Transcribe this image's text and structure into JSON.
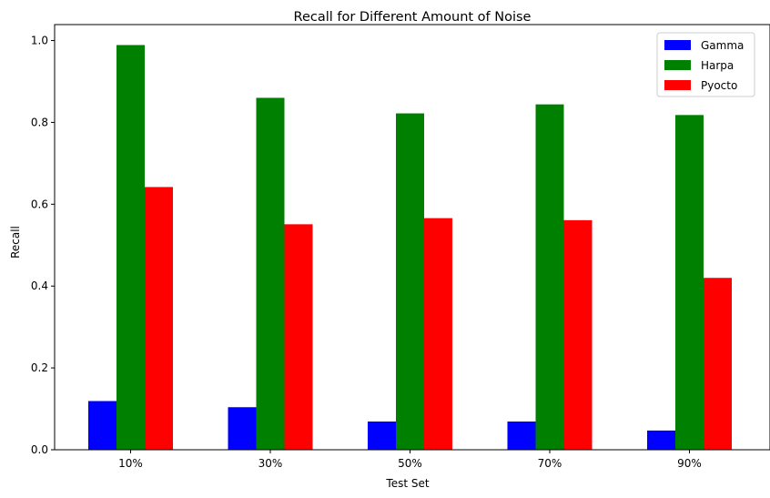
{
  "chart_data": {
    "type": "bar",
    "title": "Recall for Different Amount of Noise",
    "xlabel": "Test Set",
    "ylabel": "Recall",
    "categories": [
      "10%",
      "30%",
      "50%",
      "70%",
      "90%"
    ],
    "series": [
      {
        "name": "Gamma",
        "color": "#0000ff",
        "values": [
          0.119,
          0.104,
          0.069,
          0.069,
          0.047
        ]
      },
      {
        "name": "Harpa",
        "color": "#008000",
        "values": [
          0.989,
          0.86,
          0.822,
          0.844,
          0.818
        ]
      },
      {
        "name": "Pyocto",
        "color": "#ff0000",
        "values": [
          0.642,
          0.551,
          0.566,
          0.561,
          0.42
        ]
      }
    ],
    "ylim": [
      0,
      1.039
    ],
    "yticks": [
      0.0,
      0.2,
      0.4,
      0.6,
      0.8,
      1.0
    ],
    "ytick_labels": [
      "0.0",
      "0.2",
      "0.4",
      "0.6",
      "0.8",
      "1.0"
    ],
    "grid": false,
    "legend_position": "top-right"
  }
}
